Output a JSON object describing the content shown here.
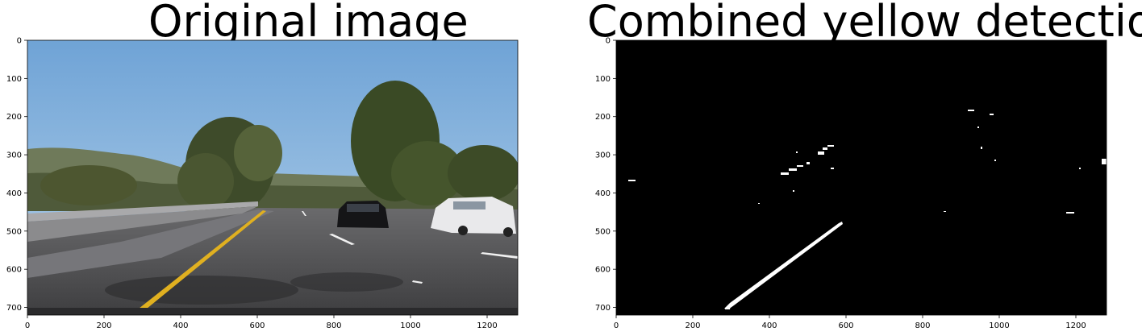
{
  "chart_data": [
    {
      "type": "image",
      "title": "Original image",
      "image_description": "Highway dashcam scene: blue sky, large trees, yellow left lane line, white dashed lane lines, a black car and a white car ahead",
      "x_ticks": [
        0,
        200,
        400,
        600,
        800,
        1000,
        1200
      ],
      "y_ticks": [
        0,
        100,
        200,
        300,
        400,
        500,
        600,
        700
      ],
      "xlim": [
        0,
        1280
      ],
      "ylim": [
        720,
        0
      ],
      "grid": false
    },
    {
      "type": "image",
      "title": "Combined yellow detection",
      "image_description": "Binary mask, black background with white pixels where yellow was detected",
      "x_ticks": [
        0,
        200,
        400,
        600,
        800,
        1000,
        1200
      ],
      "y_ticks": [
        0,
        100,
        200,
        300,
        400,
        500,
        600,
        700
      ],
      "xlim": [
        0,
        1280
      ],
      "ylim": [
        720,
        0
      ],
      "grid": false
    }
  ],
  "colors": {
    "sky_top": "#6fa3d6",
    "sky_bottom": "#a9cbe8",
    "road": "#4d4d4f",
    "yellow_line": "#e0b020",
    "mask_background": "#000000",
    "mask_foreground": "#ffffff"
  }
}
